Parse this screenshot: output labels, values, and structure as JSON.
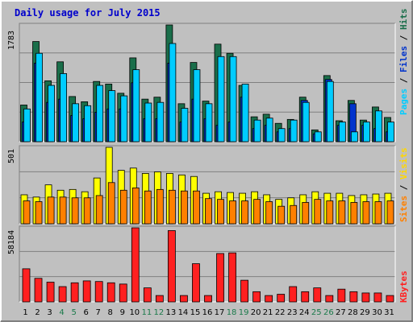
{
  "title": "Daily usage for July 2015",
  "colors": {
    "background": "#c0c0c0",
    "title": "#0000cc",
    "hits": "#1a6e4a",
    "files": "#00ccff",
    "pages": "#0033cc",
    "visits": "#ffff00",
    "sites": "#ff8000",
    "kbytes": "#ff2020",
    "weekend_label": "#1a7a4a",
    "weekday_label": "#000000"
  },
  "legends": {
    "top": {
      "pages": "Pages",
      "sep1": " / ",
      "files": "Files",
      "sep2": " / ",
      "hits": "Hits"
    },
    "mid": {
      "sites": "Sites",
      "sep": " / ",
      "visits": "Visits"
    },
    "bottom": {
      "kbytes": "KBytes"
    }
  },
  "chart_data": [
    {
      "type": "bar",
      "name": "hits-files-pages",
      "categories": [
        "1",
        "2",
        "3",
        "4",
        "5",
        "6",
        "7",
        "8",
        "9",
        "10",
        "11",
        "12",
        "13",
        "14",
        "15",
        "16",
        "17",
        "18",
        "19",
        "20",
        "21",
        "22",
        "23",
        "24",
        "25",
        "26",
        "27",
        "28",
        "29",
        "30",
        "31"
      ],
      "ymax_label": "1783",
      "ylim": [
        0,
        1783
      ],
      "series": [
        {
          "name": "Hits",
          "values": [
            560,
            1530,
            930,
            1220,
            690,
            610,
            920,
            880,
            740,
            1280,
            650,
            680,
            1783,
            580,
            1210,
            620,
            1490,
            1350,
            860,
            380,
            420,
            280,
            340,
            680,
            180,
            1010,
            320,
            630,
            330,
            530,
            370
          ]
        },
        {
          "name": "Files",
          "values": [
            500,
            1350,
            860,
            1040,
            580,
            550,
            860,
            780,
            700,
            1100,
            590,
            600,
            1500,
            510,
            1100,
            580,
            1300,
            1300,
            880,
            330,
            360,
            200,
            330,
            600,
            150,
            920,
            300,
            150,
            300,
            470,
            300
          ]
        },
        {
          "name": "Pages",
          "values": [
            300,
            1200,
            600,
            650,
            400,
            350,
            450,
            500,
            500,
            900,
            350,
            350,
            1200,
            300,
            650,
            350,
            250,
            300,
            680,
            200,
            250,
            150,
            200,
            630,
            120,
            950,
            250,
            580,
            250,
            200,
            150
          ]
        }
      ]
    },
    {
      "type": "bar",
      "name": "visits-sites",
      "categories": [
        "1",
        "2",
        "3",
        "4",
        "5",
        "6",
        "7",
        "8",
        "9",
        "10",
        "11",
        "12",
        "13",
        "14",
        "15",
        "16",
        "17",
        "18",
        "19",
        "20",
        "21",
        "22",
        "23",
        "24",
        "25",
        "26",
        "27",
        "28",
        "29",
        "30",
        "31"
      ],
      "ymax_label": "501",
      "ylim": [
        0,
        501
      ],
      "series": [
        {
          "name": "Visits",
          "values": [
            190,
            175,
            255,
            220,
            225,
            210,
            300,
            501,
            350,
            365,
            330,
            340,
            330,
            320,
            310,
            200,
            210,
            205,
            200,
            210,
            190,
            160,
            170,
            190,
            210,
            200,
            200,
            185,
            190,
            195,
            200
          ]
        },
        {
          "name": "Sites",
          "values": [
            150,
            145,
            175,
            175,
            170,
            170,
            185,
            270,
            220,
            235,
            215,
            225,
            220,
            215,
            215,
            165,
            160,
            150,
            150,
            160,
            145,
            115,
            120,
            140,
            160,
            150,
            150,
            140,
            145,
            145,
            150
          ]
        }
      ]
    },
    {
      "type": "bar",
      "name": "kbytes",
      "categories": [
        "1",
        "2",
        "3",
        "4",
        "5",
        "6",
        "7",
        "8",
        "9",
        "10",
        "11",
        "12",
        "13",
        "14",
        "15",
        "16",
        "17",
        "18",
        "19",
        "20",
        "21",
        "22",
        "23",
        "24",
        "25",
        "26",
        "27",
        "28",
        "29",
        "30",
        "31"
      ],
      "ymax_label": "58184",
      "ylim": [
        0,
        58184
      ],
      "series": [
        {
          "name": "KBytes",
          "values": [
            26000,
            18500,
            15500,
            12000,
            15000,
            16500,
            16000,
            15000,
            14000,
            58184,
            11000,
            5000,
            56000,
            5000,
            30000,
            5000,
            38000,
            38500,
            17000,
            8000,
            5000,
            6000,
            12000,
            8000,
            11000,
            5000,
            10000,
            8000,
            7000,
            7000,
            5000
          ]
        }
      ]
    }
  ],
  "weekend_days": [
    4,
    5,
    11,
    12,
    18,
    19,
    25,
    26
  ]
}
